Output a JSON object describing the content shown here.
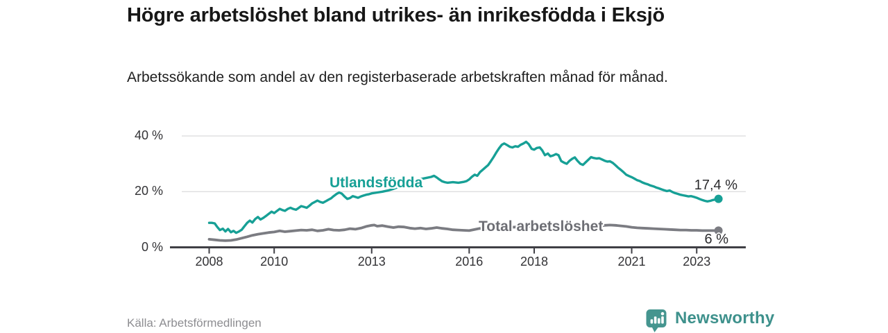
{
  "header": {
    "title": "Högre arbetslöshet bland utrikes- än inrikesfödda i Eksjö",
    "subtitle": "Arbetssökande som andel av den registerbaserade arbetskraften månad för månad."
  },
  "footer": {
    "source": "Källa: Arbetsförmedlingen",
    "brand": "Newsworthy"
  },
  "colors": {
    "foreign_born_line": "#17a096",
    "total_line": "#7b7c82",
    "axis": "#3f3f45",
    "gridline": "#e0e0e2",
    "tick_text": "#333336",
    "total_label_text": "#6d6e74",
    "brand_teal": "#45958f",
    "end_dot_foreign": "#17a096",
    "end_dot_total": "#7b7c82"
  },
  "chart_data": {
    "type": "line",
    "title": "Högre arbetslöshet bland utrikes- än inrikesfödda i Eksjö",
    "subtitle": "Arbetssökande som andel av den registerbaserade arbetskraften månad för månad.",
    "xlabel": "",
    "ylabel": "",
    "grid": "horizontal",
    "legend_position": "inline-labels",
    "x_axis": {
      "tick_years": [
        2008,
        2010,
        2013,
        2016,
        2018,
        2021,
        2023
      ],
      "tick_labels": [
        "2008",
        "2010",
        "2013",
        "2016",
        "2018",
        "2021",
        "2023"
      ],
      "range": [
        2007.7,
        2024.5
      ]
    },
    "y_axis": {
      "ticks": [
        0,
        20,
        40
      ],
      "tick_labels": [
        "0 %",
        "20 %",
        "40 %"
      ],
      "range": [
        0,
        42
      ]
    },
    "series": [
      {
        "name": "Utlandsfödda",
        "color": "#17a096",
        "end_value": 17.4,
        "end_label": "17,4 %",
        "points": [
          [
            2008.0,
            8.8
          ],
          [
            2008.08,
            8.8
          ],
          [
            2008.17,
            8.6
          ],
          [
            2008.25,
            7.3
          ],
          [
            2008.33,
            6.2
          ],
          [
            2008.42,
            6.7
          ],
          [
            2008.5,
            5.7
          ],
          [
            2008.58,
            6.6
          ],
          [
            2008.67,
            5.4
          ],
          [
            2008.75,
            5.9
          ],
          [
            2008.83,
            5.2
          ],
          [
            2008.92,
            5.7
          ],
          [
            2009.0,
            6.3
          ],
          [
            2009.08,
            7.5
          ],
          [
            2009.17,
            8.8
          ],
          [
            2009.25,
            9.6
          ],
          [
            2009.33,
            8.9
          ],
          [
            2009.42,
            10.2
          ],
          [
            2009.5,
            10.9
          ],
          [
            2009.58,
            10.0
          ],
          [
            2009.67,
            10.6
          ],
          [
            2009.75,
            11.3
          ],
          [
            2009.83,
            12.0
          ],
          [
            2009.92,
            12.8
          ],
          [
            2010.0,
            12.3
          ],
          [
            2010.08,
            13.0
          ],
          [
            2010.17,
            13.8
          ],
          [
            2010.25,
            13.4
          ],
          [
            2010.33,
            13.1
          ],
          [
            2010.42,
            13.8
          ],
          [
            2010.5,
            14.2
          ],
          [
            2010.58,
            13.8
          ],
          [
            2010.67,
            13.5
          ],
          [
            2010.75,
            14.1
          ],
          [
            2010.83,
            14.8
          ],
          [
            2010.92,
            14.5
          ],
          [
            2011.0,
            14.2
          ],
          [
            2011.08,
            14.9
          ],
          [
            2011.17,
            15.8
          ],
          [
            2011.25,
            16.3
          ],
          [
            2011.33,
            16.8
          ],
          [
            2011.42,
            16.3
          ],
          [
            2011.5,
            16.0
          ],
          [
            2011.58,
            16.5
          ],
          [
            2011.67,
            17.1
          ],
          [
            2011.75,
            17.6
          ],
          [
            2011.83,
            18.4
          ],
          [
            2011.92,
            19.2
          ],
          [
            2012.0,
            19.7
          ],
          [
            2012.08,
            19.3
          ],
          [
            2012.17,
            18.2
          ],
          [
            2012.25,
            17.4
          ],
          [
            2012.33,
            17.7
          ],
          [
            2012.42,
            18.4
          ],
          [
            2012.5,
            18.1
          ],
          [
            2012.58,
            17.8
          ],
          [
            2012.67,
            18.3
          ],
          [
            2012.75,
            18.6
          ],
          [
            2012.83,
            18.9
          ],
          [
            2012.92,
            19.1
          ],
          [
            2013.0,
            19.4
          ],
          [
            2013.17,
            19.7
          ],
          [
            2013.33,
            20.0
          ],
          [
            2013.5,
            20.4
          ],
          [
            2013.67,
            21.0
          ],
          [
            2013.83,
            21.7
          ],
          [
            2014.0,
            22.4
          ],
          [
            2014.17,
            23.2
          ],
          [
            2014.33,
            23.9
          ],
          [
            2014.5,
            24.5
          ],
          [
            2014.67,
            24.9
          ],
          [
            2014.83,
            25.3
          ],
          [
            2014.92,
            25.7
          ],
          [
            2015.0,
            25.1
          ],
          [
            2015.08,
            24.4
          ],
          [
            2015.17,
            23.7
          ],
          [
            2015.25,
            23.4
          ],
          [
            2015.33,
            23.2
          ],
          [
            2015.5,
            23.4
          ],
          [
            2015.67,
            23.2
          ],
          [
            2015.83,
            23.5
          ],
          [
            2015.92,
            23.8
          ],
          [
            2016.0,
            24.4
          ],
          [
            2016.08,
            25.3
          ],
          [
            2016.17,
            26.1
          ],
          [
            2016.25,
            25.7
          ],
          [
            2016.33,
            27.0
          ],
          [
            2016.42,
            27.9
          ],
          [
            2016.5,
            28.7
          ],
          [
            2016.58,
            29.5
          ],
          [
            2016.67,
            31.0
          ],
          [
            2016.75,
            32.4
          ],
          [
            2016.83,
            34.0
          ],
          [
            2016.92,
            35.6
          ],
          [
            2017.0,
            36.8
          ],
          [
            2017.08,
            37.3
          ],
          [
            2017.17,
            36.7
          ],
          [
            2017.25,
            36.1
          ],
          [
            2017.33,
            35.9
          ],
          [
            2017.42,
            36.3
          ],
          [
            2017.5,
            36.1
          ],
          [
            2017.58,
            36.8
          ],
          [
            2017.67,
            37.3
          ],
          [
            2017.75,
            37.9
          ],
          [
            2017.83,
            37.1
          ],
          [
            2017.92,
            35.4
          ],
          [
            2018.0,
            35.1
          ],
          [
            2018.08,
            35.7
          ],
          [
            2018.17,
            35.9
          ],
          [
            2018.25,
            34.8
          ],
          [
            2018.33,
            33.1
          ],
          [
            2018.42,
            33.7
          ],
          [
            2018.5,
            32.7
          ],
          [
            2018.58,
            33.0
          ],
          [
            2018.67,
            33.5
          ],
          [
            2018.75,
            33.1
          ],
          [
            2018.83,
            31.0
          ],
          [
            2018.92,
            30.4
          ],
          [
            2019.0,
            30.0
          ],
          [
            2019.08,
            31.0
          ],
          [
            2019.17,
            31.8
          ],
          [
            2019.25,
            32.3
          ],
          [
            2019.33,
            31.1
          ],
          [
            2019.42,
            30.0
          ],
          [
            2019.5,
            29.6
          ],
          [
            2019.58,
            30.5
          ],
          [
            2019.67,
            31.5
          ],
          [
            2019.75,
            32.4
          ],
          [
            2019.83,
            32.1
          ],
          [
            2019.92,
            31.9
          ],
          [
            2020.0,
            32.0
          ],
          [
            2020.08,
            31.6
          ],
          [
            2020.17,
            31.1
          ],
          [
            2020.25,
            30.8
          ],
          [
            2020.33,
            30.9
          ],
          [
            2020.42,
            30.3
          ],
          [
            2020.5,
            29.5
          ],
          [
            2020.58,
            28.6
          ],
          [
            2020.67,
            27.8
          ],
          [
            2020.75,
            27.0
          ],
          [
            2020.83,
            26.1
          ],
          [
            2020.92,
            25.6
          ],
          [
            2021.0,
            25.2
          ],
          [
            2021.08,
            24.7
          ],
          [
            2021.17,
            24.1
          ],
          [
            2021.25,
            23.8
          ],
          [
            2021.33,
            23.3
          ],
          [
            2021.42,
            22.9
          ],
          [
            2021.5,
            22.6
          ],
          [
            2021.58,
            22.2
          ],
          [
            2021.67,
            21.9
          ],
          [
            2021.75,
            21.5
          ],
          [
            2021.83,
            21.2
          ],
          [
            2021.92,
            20.8
          ],
          [
            2022.0,
            20.5
          ],
          [
            2022.08,
            20.2
          ],
          [
            2022.17,
            20.4
          ],
          [
            2022.25,
            19.9
          ],
          [
            2022.33,
            19.5
          ],
          [
            2022.42,
            19.2
          ],
          [
            2022.5,
            18.9
          ],
          [
            2022.58,
            18.7
          ],
          [
            2022.67,
            18.5
          ],
          [
            2022.75,
            18.3
          ],
          [
            2022.83,
            18.4
          ],
          [
            2022.92,
            18.1
          ],
          [
            2023.0,
            17.8
          ],
          [
            2023.08,
            17.4
          ],
          [
            2023.17,
            17.0
          ],
          [
            2023.25,
            16.7
          ],
          [
            2023.33,
            16.5
          ],
          [
            2023.42,
            16.7
          ],
          [
            2023.5,
            17.0
          ],
          [
            2023.58,
            17.2
          ],
          [
            2023.67,
            17.4
          ]
        ]
      },
      {
        "name": "Total arbetslöshet",
        "color": "#7b7c82",
        "end_value": 6.0,
        "end_label": "6 %",
        "points": [
          [
            2008.0,
            2.9
          ],
          [
            2008.17,
            2.7
          ],
          [
            2008.33,
            2.5
          ],
          [
            2008.5,
            2.4
          ],
          [
            2008.67,
            2.5
          ],
          [
            2008.83,
            2.8
          ],
          [
            2009.0,
            3.3
          ],
          [
            2009.17,
            3.8
          ],
          [
            2009.33,
            4.3
          ],
          [
            2009.5,
            4.7
          ],
          [
            2009.67,
            5.0
          ],
          [
            2009.83,
            5.3
          ],
          [
            2010.0,
            5.5
          ],
          [
            2010.17,
            5.9
          ],
          [
            2010.33,
            5.6
          ],
          [
            2010.5,
            5.8
          ],
          [
            2010.67,
            6.0
          ],
          [
            2010.83,
            6.2
          ],
          [
            2011.0,
            6.1
          ],
          [
            2011.17,
            6.3
          ],
          [
            2011.33,
            5.9
          ],
          [
            2011.5,
            6.1
          ],
          [
            2011.67,
            6.5
          ],
          [
            2011.83,
            6.2
          ],
          [
            2012.0,
            6.1
          ],
          [
            2012.17,
            6.3
          ],
          [
            2012.33,
            6.7
          ],
          [
            2012.5,
            6.5
          ],
          [
            2012.67,
            6.9
          ],
          [
            2012.83,
            7.5
          ],
          [
            2013.0,
            7.9
          ],
          [
            2013.08,
            8.0
          ],
          [
            2013.17,
            7.6
          ],
          [
            2013.33,
            7.8
          ],
          [
            2013.5,
            7.4
          ],
          [
            2013.67,
            7.1
          ],
          [
            2013.83,
            7.4
          ],
          [
            2014.0,
            7.3
          ],
          [
            2014.17,
            6.9
          ],
          [
            2014.33,
            6.7
          ],
          [
            2014.5,
            6.9
          ],
          [
            2014.67,
            6.6
          ],
          [
            2014.83,
            6.8
          ],
          [
            2015.0,
            7.1
          ],
          [
            2015.17,
            6.8
          ],
          [
            2015.33,
            6.6
          ],
          [
            2015.5,
            6.3
          ],
          [
            2015.67,
            6.2
          ],
          [
            2015.83,
            6.1
          ],
          [
            2016.0,
            6.0
          ],
          [
            2016.17,
            6.4
          ],
          [
            2016.33,
            6.8
          ],
          [
            2016.5,
            6.5
          ],
          [
            2016.67,
            6.6
          ],
          [
            2016.83,
            6.9
          ],
          [
            2017.0,
            7.0
          ],
          [
            2017.25,
            7.2
          ],
          [
            2017.5,
            7.3
          ],
          [
            2017.75,
            7.5
          ],
          [
            2018.0,
            7.6
          ],
          [
            2018.25,
            7.5
          ],
          [
            2018.5,
            7.7
          ],
          [
            2018.75,
            7.6
          ],
          [
            2019.0,
            7.5
          ],
          [
            2019.25,
            7.6
          ],
          [
            2019.5,
            7.5
          ],
          [
            2019.75,
            7.6
          ],
          [
            2020.0,
            7.7
          ],
          [
            2020.17,
            7.9
          ],
          [
            2020.33,
            8.0
          ],
          [
            2020.5,
            7.9
          ],
          [
            2020.67,
            7.7
          ],
          [
            2020.83,
            7.5
          ],
          [
            2021.0,
            7.2
          ],
          [
            2021.17,
            7.0
          ],
          [
            2021.33,
            6.9
          ],
          [
            2021.5,
            6.8
          ],
          [
            2021.67,
            6.7
          ],
          [
            2021.83,
            6.6
          ],
          [
            2022.0,
            6.5
          ],
          [
            2022.17,
            6.4
          ],
          [
            2022.33,
            6.3
          ],
          [
            2022.5,
            6.2
          ],
          [
            2022.67,
            6.2
          ],
          [
            2022.83,
            6.1
          ],
          [
            2023.0,
            6.1
          ],
          [
            2023.17,
            6.0
          ],
          [
            2023.33,
            6.0
          ],
          [
            2023.5,
            6.0
          ],
          [
            2023.67,
            6.0
          ]
        ]
      }
    ]
  }
}
